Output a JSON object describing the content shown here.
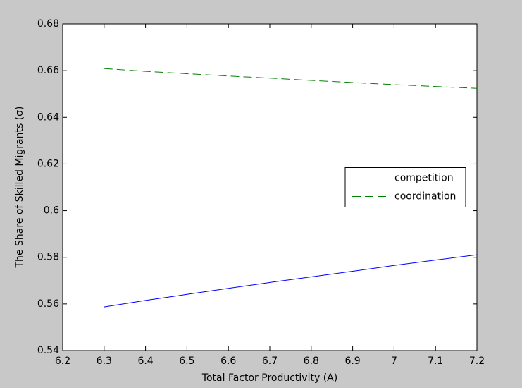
{
  "chart_data": {
    "type": "line",
    "xlabel": "Total Factor Productivity (A)",
    "ylabel": "The Share of Skilled Migrants (σ)",
    "x": [
      6.3,
      6.4,
      6.5,
      6.6,
      6.7,
      6.8,
      6.9,
      7.0,
      7.1,
      7.2
    ],
    "series": [
      {
        "name": "competition",
        "color": "#0000ff",
        "linestyle": "solid",
        "values": [
          0.5587,
          0.5615,
          0.5641,
          0.5667,
          0.5692,
          0.5716,
          0.574,
          0.5765,
          0.5788,
          0.5811
        ]
      },
      {
        "name": "coordination",
        "color": "#008000",
        "linestyle": "dashed",
        "values": [
          0.6609,
          0.6597,
          0.6587,
          0.6577,
          0.6568,
          0.6558,
          0.6549,
          0.654,
          0.6532,
          0.6524
        ]
      }
    ],
    "xlim": [
      6.2,
      7.2
    ],
    "xticks": [
      6.2,
      6.3,
      6.4,
      6.5,
      6.6,
      6.7,
      6.8,
      6.9,
      7,
      7.1,
      7.2
    ],
    "ylim": [
      0.54,
      0.68
    ],
    "yticks": [
      0.54,
      0.56,
      0.58,
      0.6,
      0.62,
      0.64,
      0.66,
      0.68
    ],
    "grid": false,
    "legend": "east"
  }
}
